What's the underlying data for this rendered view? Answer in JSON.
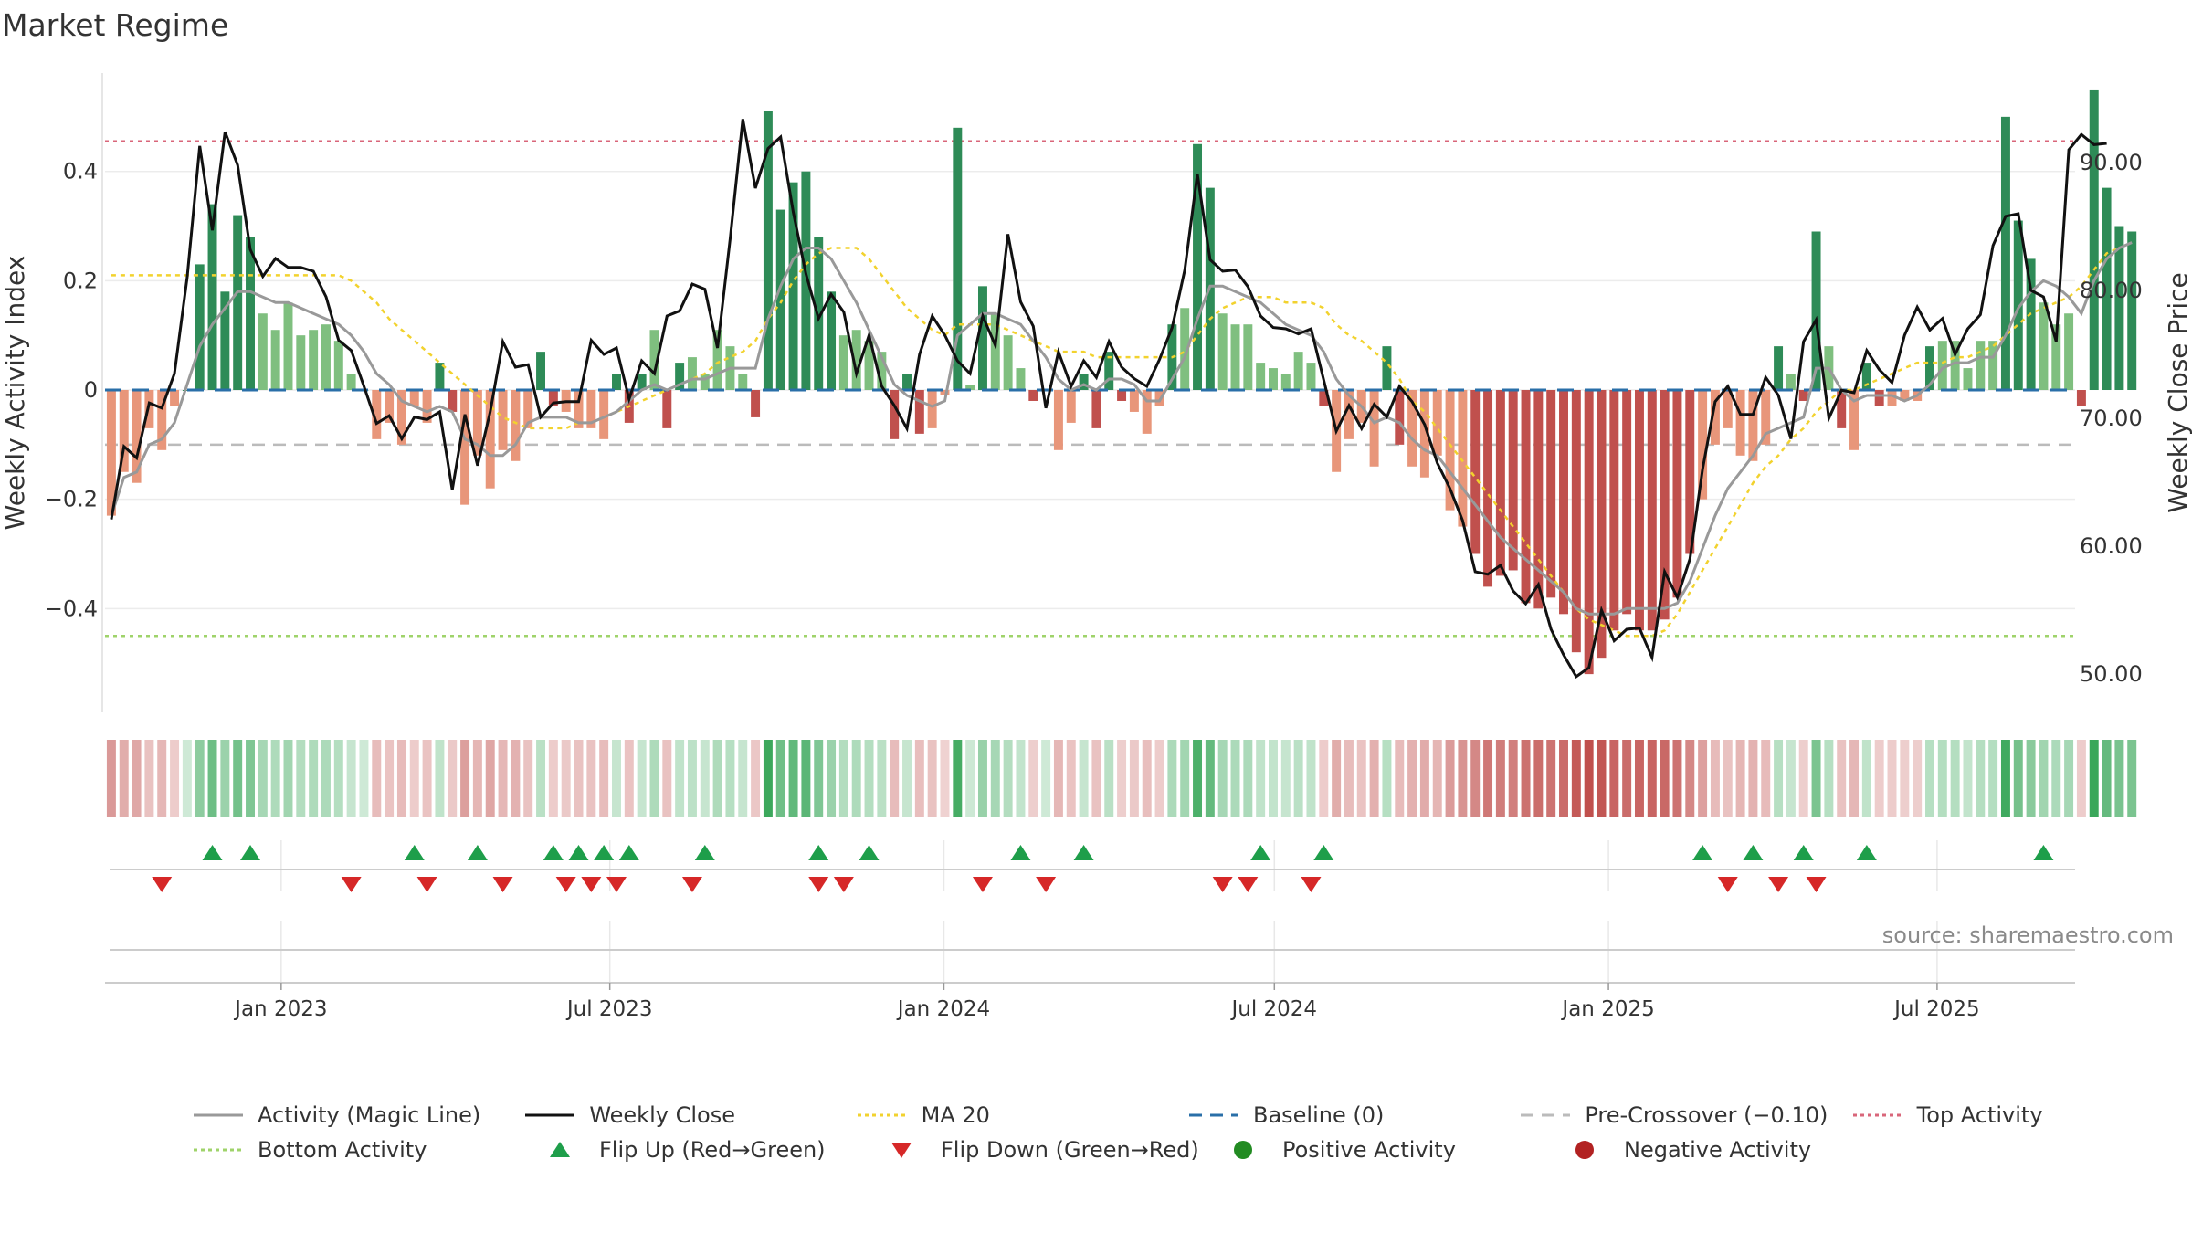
{
  "title": "Market Regime",
  "source": "source: sharemaestro.com",
  "colors": {
    "green_dark": "#2e8b57",
    "green_light": "#7fbf7f",
    "red_dark": "#c0504d",
    "red_light": "#e8967a",
    "close_line": "#111111",
    "magic_line": "#999999",
    "ma20": "#f2d22e",
    "baseline": "#2a6fa8",
    "pre_crossover": "#bbbbbb",
    "top_activity": "#d9667a",
    "bottom_activity": "#9fd36a",
    "flip_up": "#1e9e4a",
    "flip_down": "#d62828",
    "positive": "#228b22",
    "negative": "#b22222"
  },
  "legend": [
    {
      "key": "magic",
      "label": "Activity (Magic Line)",
      "icon": "gray-line-icon"
    },
    {
      "key": "close",
      "label": "Weekly Close",
      "icon": "black-line-icon"
    },
    {
      "key": "ma20",
      "label": "MA 20",
      "icon": "yellow-dotted-line-icon"
    },
    {
      "key": "baseline",
      "label": "Baseline (0)",
      "icon": "blue-dashed-line-icon"
    },
    {
      "key": "pre",
      "label": "Pre-Crossover (−0.10)",
      "icon": "gray-dashed-line-icon"
    },
    {
      "key": "top",
      "label": "Top Activity",
      "icon": "pink-dotted-line-icon"
    },
    {
      "key": "bottom",
      "label": "Bottom Activity",
      "icon": "green-dotted-line-icon"
    },
    {
      "key": "flipup",
      "label": "Flip Up (Red→Green)",
      "icon": "triangle-up-icon"
    },
    {
      "key": "flipdown",
      "label": "Flip Down (Green→Red)",
      "icon": "triangle-down-icon"
    },
    {
      "key": "pos",
      "label": "Positive Activity",
      "icon": "green-dot-icon"
    },
    {
      "key": "neg",
      "label": "Negative Activity",
      "icon": "red-dot-icon"
    }
  ],
  "chart_data": {
    "type": "bar",
    "title": "Market Regime",
    "ylabel": "Weekly Activity Index",
    "y2label": "Weekly Close Price",
    "ylim": [
      -0.59,
      0.58
    ],
    "y2lim": [
      47.0,
      97.0
    ],
    "yticks": [
      0.4,
      0.2,
      0,
      -0.2,
      -0.4
    ],
    "ytick_labels": [
      "0.4",
      "0.2",
      "0",
      "−0.2",
      "−0.4"
    ],
    "y2ticks": [
      90,
      80,
      70,
      60,
      50
    ],
    "y2tick_labels": [
      "90.00",
      "80.00",
      "70.00",
      "60.00",
      "50.00"
    ],
    "x_start": "2022-09-26",
    "x_end": "2025-09-15",
    "xtick_dates": [
      "2023-01-01",
      "2023-07-01",
      "2024-01-01",
      "2024-07-01",
      "2025-01-01",
      "2025-07-01"
    ],
    "xtick_labels": [
      "Jan 2023",
      "Jul 2023",
      "Jan 2024",
      "Jul 2024",
      "Jan 2025",
      "Jul 2025"
    ],
    "grid": true,
    "legend_position": "bottom",
    "reference_lines": {
      "baseline": 0,
      "pre_crossover": -0.1,
      "top_activity": 0.455,
      "bottom_activity": -0.45
    },
    "weeks": 156,
    "activity": [
      -0.23,
      -0.15,
      -0.17,
      -0.07,
      -0.11,
      -0.03,
      0,
      0.23,
      0.34,
      0.18,
      0.32,
      0.28,
      0.14,
      0.11,
      0.16,
      0.1,
      0.11,
      0.12,
      0.09,
      0.03,
      0,
      -0.09,
      -0.06,
      -0.1,
      -0.03,
      -0.06,
      0.05,
      -0.04,
      -0.21,
      -0.12,
      -0.18,
      -0.11,
      -0.13,
      -0.07,
      0.07,
      -0.03,
      -0.04,
      -0.07,
      -0.07,
      -0.09,
      0.03,
      -0.06,
      0.03,
      0.11,
      -0.07,
      0.05,
      0.06,
      0.03,
      0.11,
      0.08,
      0.03,
      -0.05,
      0.51,
      0.33,
      0.38,
      0.4,
      0.28,
      0.18,
      0.1,
      0.11,
      0.09,
      0.07,
      -0.09,
      0.03,
      -0.08,
      -0.07,
      -0.01,
      0.48,
      0.01,
      0.19,
      0.14,
      0.1,
      0.04,
      -0.02,
      0,
      -0.11,
      -0.06,
      0.03,
      -0.07,
      0.07,
      -0.02,
      -0.04,
      -0.08,
      -0.03,
      0.12,
      0.15,
      0.45,
      0.37,
      0.14,
      0.12,
      0.12,
      0.05,
      0.04,
      0.03,
      0.07,
      0.05,
      -0.03,
      -0.15,
      -0.09,
      -0.06,
      -0.14,
      0.08,
      -0.1,
      -0.14,
      -0.16,
      -0.12,
      -0.22,
      -0.25,
      -0.3,
      -0.36,
      -0.34,
      -0.33,
      -0.39,
      -0.4,
      -0.38,
      -0.41,
      -0.48,
      -0.52,
      -0.49,
      -0.44,
      -0.41,
      -0.44,
      -0.44,
      -0.42,
      -0.38,
      -0.3,
      -0.2,
      -0.1,
      -0.07,
      -0.12,
      -0.13,
      -0.1,
      0.08,
      0.03,
      -0.02,
      0.29,
      0.08,
      -0.07,
      -0.11,
      0.05,
      -0.03,
      -0.03,
      -0.02,
      -0.02,
      0.08,
      0.09,
      0.09,
      0.04,
      0.09,
      0.09,
      0.5,
      0.31,
      0.24,
      0.16,
      0.12,
      0.14,
      -0.03,
      0.55,
      0.37,
      0.3,
      0.29
    ],
    "close": [
      62.1,
      67.8,
      66.9,
      71.2,
      70.8,
      73.5,
      81.0,
      91.3,
      84.7,
      92.4,
      89.8,
      83.2,
      81.1,
      82.5,
      81.8,
      81.8,
      81.5,
      79.5,
      76.1,
      75.3,
      72.5,
      69.6,
      70.2,
      68.4,
      70.1,
      69.9,
      70.5,
      64.4,
      70.3,
      66.3,
      70.5,
      76.0,
      74.0,
      74.2,
      70.1,
      71.2,
      71.3,
      71.3,
      76.1,
      75.0,
      75.5,
      71.5,
      74.5,
      73.5,
      78.0,
      78.4,
      80.5,
      80.1,
      75.5,
      84.0,
      93.4,
      88.0,
      91.1,
      92.0,
      86.1,
      81.3,
      77.8,
      79.7,
      78.3,
      73.5,
      76.5,
      72.5,
      71.0,
      69.2,
      75.0,
      78.0,
      76.5,
      74.5,
      73.5,
      78.0,
      75.7,
      84.4,
      79.1,
      77.2,
      70.8,
      75.2,
      72.5,
      74.5,
      73.2,
      76.0,
      74.0,
      73.1,
      72.5,
      74.6,
      77.1,
      81.6,
      89.1,
      82.4,
      81.5,
      81.6,
      80.3,
      78.0,
      77.1,
      77.0,
      76.6,
      77.0,
      73.0,
      69.0,
      71.0,
      69.2,
      71.1,
      70.1,
      72.5,
      71.3,
      69.5,
      66.5,
      64.5,
      62.0,
      58.0,
      57.8,
      58.5,
      56.5,
      55.5,
      57.0,
      53.5,
      51.5,
      49.8,
      50.5,
      55.0,
      52.6,
      53.5,
      53.6,
      51.3,
      58.0,
      56.0,
      59.0,
      66.0,
      71.3,
      72.5,
      70.3,
      70.3,
      73.2,
      71.8,
      68.4,
      76.0,
      77.7,
      70.0,
      72.2,
      72.0,
      75.3,
      73.8,
      72.8,
      76.5,
      78.7,
      76.9,
      77.8,
      75.0,
      77.0,
      78.1,
      83.5,
      85.8,
      86.0,
      80.0,
      79.5,
      76.0,
      91.0,
      92.2,
      91.4,
      91.5
    ],
    "magic": [
      -0.23,
      -0.16,
      -0.15,
      -0.1,
      -0.09,
      -0.06,
      0.01,
      0.08,
      0.12,
      0.15,
      0.18,
      0.18,
      0.17,
      0.16,
      0.16,
      0.15,
      0.14,
      0.13,
      0.12,
      0.1,
      0.07,
      0.03,
      0.01,
      -0.02,
      -0.03,
      -0.04,
      -0.03,
      -0.04,
      -0.09,
      -0.1,
      -0.12,
      -0.12,
      -0.1,
      -0.06,
      -0.05,
      -0.05,
      -0.05,
      -0.06,
      -0.06,
      -0.05,
      -0.04,
      -0.02,
      0.0,
      0.01,
      0.0,
      0.01,
      0.02,
      0.02,
      0.03,
      0.04,
      0.04,
      0.04,
      0.13,
      0.19,
      0.24,
      0.26,
      0.26,
      0.24,
      0.2,
      0.16,
      0.11,
      0.06,
      0.01,
      -0.01,
      -0.02,
      -0.03,
      -0.02,
      0.1,
      0.12,
      0.14,
      0.14,
      0.13,
      0.12,
      0.09,
      0.06,
      0.02,
      0.0,
      0.01,
      0.0,
      0.02,
      0.02,
      0.01,
      -0.02,
      -0.02,
      0.02,
      0.06,
      0.13,
      0.19,
      0.19,
      0.18,
      0.17,
      0.16,
      0.14,
      0.12,
      0.11,
      0.1,
      0.07,
      0.02,
      -0.01,
      -0.03,
      -0.06,
      -0.05,
      -0.06,
      -0.09,
      -0.11,
      -0.12,
      -0.15,
      -0.18,
      -0.21,
      -0.24,
      -0.27,
      -0.29,
      -0.31,
      -0.33,
      -0.35,
      -0.37,
      -0.4,
      -0.41,
      -0.41,
      -0.41,
      -0.4,
      -0.4,
      -0.4,
      -0.4,
      -0.39,
      -0.35,
      -0.29,
      -0.23,
      -0.18,
      -0.15,
      -0.12,
      -0.08,
      -0.07,
      -0.06,
      -0.05,
      0.04,
      0.04,
      0.0,
      -0.02,
      -0.01,
      -0.01,
      -0.01,
      -0.02,
      -0.01,
      0.01,
      0.04,
      0.05,
      0.05,
      0.06,
      0.06,
      0.1,
      0.15,
      0.18,
      0.2,
      0.19,
      0.17,
      0.14,
      0.2,
      0.24,
      0.26,
      0.27
    ],
    "ma20": [
      0.21,
      0.21,
      0.21,
      0.21,
      0.21,
      0.21,
      0.21,
      0.21,
      0.21,
      0.21,
      0.21,
      0.21,
      0.21,
      0.21,
      0.21,
      0.21,
      0.21,
      0.21,
      0.21,
      0.2,
      0.18,
      0.16,
      0.13,
      0.11,
      0.09,
      0.07,
      0.05,
      0.03,
      0.01,
      -0.01,
      -0.03,
      -0.05,
      -0.06,
      -0.07,
      -0.07,
      -0.07,
      -0.07,
      -0.06,
      -0.06,
      -0.05,
      -0.04,
      -0.03,
      -0.02,
      -0.01,
      0.0,
      0.01,
      0.02,
      0.03,
      0.05,
      0.06,
      0.07,
      0.09,
      0.13,
      0.16,
      0.2,
      0.23,
      0.25,
      0.26,
      0.26,
      0.26,
      0.24,
      0.21,
      0.18,
      0.15,
      0.13,
      0.11,
      0.1,
      0.12,
      0.12,
      0.12,
      0.12,
      0.11,
      0.1,
      0.09,
      0.08,
      0.07,
      0.07,
      0.07,
      0.06,
      0.06,
      0.06,
      0.06,
      0.06,
      0.06,
      0.06,
      0.07,
      0.1,
      0.13,
      0.15,
      0.16,
      0.17,
      0.17,
      0.17,
      0.16,
      0.16,
      0.16,
      0.15,
      0.12,
      0.1,
      0.09,
      0.07,
      0.05,
      0.02,
      -0.02,
      -0.04,
      -0.07,
      -0.1,
      -0.13,
      -0.16,
      -0.19,
      -0.22,
      -0.25,
      -0.28,
      -0.31,
      -0.34,
      -0.37,
      -0.4,
      -0.42,
      -0.43,
      -0.44,
      -0.45,
      -0.45,
      -0.45,
      -0.44,
      -0.41,
      -0.37,
      -0.33,
      -0.29,
      -0.25,
      -0.21,
      -0.17,
      -0.14,
      -0.12,
      -0.09,
      -0.07,
      -0.04,
      -0.02,
      0.0,
      0.0,
      0.01,
      0.02,
      0.03,
      0.04,
      0.05,
      0.05,
      0.05,
      0.06,
      0.06,
      0.07,
      0.08,
      0.1,
      0.12,
      0.14,
      0.15,
      0.16,
      0.17,
      0.19,
      0.22,
      0.25,
      0.26
    ],
    "flips_up": [
      8,
      11,
      24,
      29,
      35,
      37,
      39,
      41,
      47,
      56,
      60,
      72,
      77,
      91,
      96,
      126,
      130,
      134,
      139,
      153
    ],
    "flips_down": [
      4,
      19,
      25,
      31,
      36,
      38,
      40,
      46,
      56,
      58,
      69,
      74,
      88,
      90,
      95,
      128,
      132,
      135
    ],
    "volume_ribbon_note": "color strip under main panel mirrors weekly activity sign and strength"
  }
}
